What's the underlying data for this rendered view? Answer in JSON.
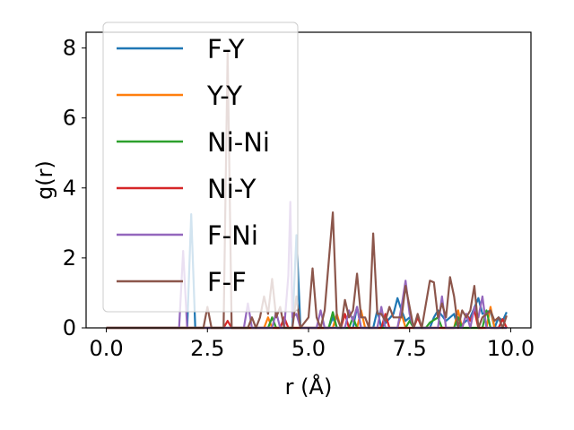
{
  "chart_data": {
    "type": "line",
    "xlabel": "r (Å)",
    "ylabel": "g(r)",
    "xlim": [
      -0.5,
      10.5
    ],
    "ylim": [
      0,
      8.45
    ],
    "xticks": [
      "0.0",
      "2.5",
      "5.0",
      "7.5",
      "10.0"
    ],
    "yticks": [
      "0",
      "2",
      "4",
      "6",
      "8"
    ],
    "legend_position": "upper left",
    "series": [
      {
        "name": "F-Y",
        "color": "#1f77b4",
        "points": [
          [
            0,
            0
          ],
          [
            2.0,
            0
          ],
          [
            2.1,
            3.25
          ],
          [
            2.2,
            0
          ],
          [
            4.6,
            0
          ],
          [
            4.7,
            2.65
          ],
          [
            4.8,
            0
          ],
          [
            5.5,
            0
          ],
          [
            5.6,
            0.3
          ],
          [
            5.7,
            0
          ],
          [
            6.1,
            0
          ],
          [
            6.2,
            0.6
          ],
          [
            6.3,
            0
          ],
          [
            6.6,
            0
          ],
          [
            6.7,
            0.5
          ],
          [
            6.8,
            0
          ],
          [
            7.1,
            0.4
          ],
          [
            7.2,
            0.85
          ],
          [
            7.3,
            0.5
          ],
          [
            7.4,
            0.2
          ],
          [
            7.5,
            0.3
          ],
          [
            7.6,
            0
          ],
          [
            8.0,
            0
          ],
          [
            8.1,
            0.3
          ],
          [
            8.2,
            0.5
          ],
          [
            8.4,
            0.2
          ],
          [
            8.6,
            0.4
          ],
          [
            8.7,
            0
          ],
          [
            9.0,
            0.3
          ],
          [
            9.2,
            0.85
          ],
          [
            9.3,
            0.4
          ],
          [
            9.5,
            0.5
          ],
          [
            9.6,
            0
          ],
          [
            9.7,
            0.3
          ],
          [
            9.8,
            0.2
          ],
          [
            9.9,
            0.45
          ]
        ]
      },
      {
        "name": "Y-Y",
        "color": "#ff7f0e",
        "points": [
          [
            0,
            0
          ],
          [
            3.9,
            0
          ],
          [
            4.0,
            0.3
          ],
          [
            4.1,
            0
          ],
          [
            5.6,
            0
          ],
          [
            5.7,
            0.4
          ],
          [
            5.8,
            0
          ],
          [
            6.2,
            0
          ],
          [
            6.3,
            0.5
          ],
          [
            6.4,
            0
          ],
          [
            7.2,
            0
          ],
          [
            7.3,
            0.4
          ],
          [
            7.4,
            0
          ],
          [
            8.6,
            0
          ],
          [
            8.7,
            0.5
          ],
          [
            8.8,
            0
          ],
          [
            9.4,
            0
          ],
          [
            9.5,
            0.6
          ],
          [
            9.6,
            0
          ],
          [
            9.9,
            0
          ]
        ]
      },
      {
        "name": "Ni-Ni",
        "color": "#2ca02c",
        "points": [
          [
            0,
            0
          ],
          [
            4.0,
            0
          ],
          [
            4.1,
            0.3
          ],
          [
            4.2,
            0
          ],
          [
            5.5,
            0
          ],
          [
            5.6,
            0.45
          ],
          [
            5.7,
            0
          ],
          [
            6.0,
            0
          ],
          [
            6.1,
            0.3
          ],
          [
            6.2,
            0
          ],
          [
            7.4,
            0
          ],
          [
            7.5,
            0.2
          ],
          [
            7.6,
            0
          ],
          [
            7.9,
            0
          ],
          [
            8.0,
            0.15
          ],
          [
            8.2,
            0.3
          ],
          [
            8.3,
            0
          ],
          [
            8.6,
            0
          ],
          [
            8.7,
            0.3
          ],
          [
            8.8,
            0
          ],
          [
            9.3,
            0
          ],
          [
            9.4,
            0.5
          ],
          [
            9.5,
            0
          ],
          [
            9.9,
            0
          ]
        ]
      },
      {
        "name": "Ni-Y",
        "color": "#d62728",
        "points": [
          [
            0,
            0
          ],
          [
            2.9,
            0
          ],
          [
            3.0,
            0.2
          ],
          [
            3.1,
            0
          ],
          [
            4.3,
            0
          ],
          [
            4.4,
            0.3
          ],
          [
            4.5,
            0
          ],
          [
            5.8,
            0
          ],
          [
            5.9,
            0.4
          ],
          [
            6.0,
            0
          ],
          [
            6.8,
            0
          ],
          [
            6.9,
            0.4
          ],
          [
            7.0,
            0
          ],
          [
            7.6,
            0
          ],
          [
            7.7,
            0.3
          ],
          [
            7.8,
            0
          ],
          [
            8.8,
            0
          ],
          [
            8.9,
            0.4
          ],
          [
            9.0,
            0.2
          ],
          [
            9.1,
            0.5
          ],
          [
            9.2,
            0
          ],
          [
            9.7,
            0
          ],
          [
            9.8,
            0.25
          ],
          [
            9.9,
            0
          ]
        ]
      },
      {
        "name": "F-Ni",
        "color": "#9467bd",
        "points": [
          [
            0,
            0
          ],
          [
            1.8,
            0
          ],
          [
            1.9,
            2.2
          ],
          [
            2.0,
            0
          ],
          [
            3.4,
            0
          ],
          [
            3.5,
            0.7
          ],
          [
            3.6,
            0
          ],
          [
            4.1,
            0
          ],
          [
            4.2,
            0.45
          ],
          [
            4.3,
            0
          ],
          [
            4.4,
            0
          ],
          [
            4.5,
            1.5
          ],
          [
            4.55,
            3.6
          ],
          [
            4.6,
            0.3
          ],
          [
            4.7,
            0.4
          ],
          [
            4.8,
            0
          ],
          [
            5.2,
            0
          ],
          [
            5.3,
            0.5
          ],
          [
            5.4,
            0
          ],
          [
            5.9,
            0
          ],
          [
            6.0,
            0.5
          ],
          [
            6.1,
            0.2
          ],
          [
            6.2,
            0.6
          ],
          [
            6.3,
            0
          ],
          [
            6.7,
            0
          ],
          [
            6.8,
            0.6
          ],
          [
            6.9,
            0
          ],
          [
            7.2,
            0
          ],
          [
            7.3,
            0.6
          ],
          [
            7.4,
            1.35
          ],
          [
            7.5,
            0.4
          ],
          [
            7.6,
            0
          ],
          [
            8.2,
            0
          ],
          [
            8.3,
            0.9
          ],
          [
            8.4,
            0
          ],
          [
            8.8,
            0
          ],
          [
            8.9,
            0.4
          ],
          [
            9.0,
            0
          ],
          [
            9.1,
            0.6
          ],
          [
            9.2,
            0.3
          ],
          [
            9.3,
            0.9
          ],
          [
            9.4,
            0
          ],
          [
            9.9,
            0
          ]
        ]
      },
      {
        "name": "F-F",
        "color": "#8c564b",
        "points": [
          [
            0,
            0
          ],
          [
            2.4,
            0
          ],
          [
            2.5,
            0.6
          ],
          [
            2.6,
            0
          ],
          [
            2.9,
            0
          ],
          [
            3.0,
            7.9
          ],
          [
            3.1,
            0
          ],
          [
            3.5,
            0
          ],
          [
            3.6,
            0.3
          ],
          [
            3.7,
            0
          ],
          [
            3.8,
            0.3
          ],
          [
            3.9,
            0.9
          ],
          [
            4.0,
            0.4
          ],
          [
            4.1,
            1.4
          ],
          [
            4.2,
            0.3
          ],
          [
            4.3,
            0.6
          ],
          [
            4.4,
            0
          ],
          [
            4.6,
            0
          ],
          [
            4.7,
            0.9
          ],
          [
            4.8,
            0
          ],
          [
            5.0,
            0.3
          ],
          [
            5.1,
            1.7
          ],
          [
            5.2,
            0.3
          ],
          [
            5.3,
            0
          ],
          [
            5.4,
            0.5
          ],
          [
            5.6,
            3.3
          ],
          [
            5.7,
            0.3
          ],
          [
            5.8,
            0
          ],
          [
            5.9,
            0.8
          ],
          [
            6.0,
            0.3
          ],
          [
            6.1,
            0.5
          ],
          [
            6.2,
            1.55
          ],
          [
            6.3,
            0.3
          ],
          [
            6.4,
            0.3
          ],
          [
            6.5,
            0
          ],
          [
            6.6,
            2.7
          ],
          [
            6.7,
            0.4
          ],
          [
            6.8,
            0.4
          ],
          [
            6.9,
            0.2
          ],
          [
            7.0,
            0.6
          ],
          [
            7.1,
            0.3
          ],
          [
            7.3,
            0.3
          ],
          [
            7.4,
            1.2
          ],
          [
            7.5,
            0.6
          ],
          [
            7.6,
            0
          ],
          [
            7.7,
            0.4
          ],
          [
            7.8,
            0
          ],
          [
            8.0,
            1.35
          ],
          [
            8.1,
            1.3
          ],
          [
            8.2,
            0.3
          ],
          [
            8.3,
            0.7
          ],
          [
            8.4,
            0.3
          ],
          [
            8.5,
            1.45
          ],
          [
            8.6,
            0.9
          ],
          [
            8.7,
            0
          ],
          [
            8.8,
            0.5
          ],
          [
            8.9,
            0.3
          ],
          [
            9.0,
            0.5
          ],
          [
            9.1,
            1.2
          ],
          [
            9.2,
            0
          ],
          [
            9.3,
            0.3
          ],
          [
            9.4,
            0.4
          ],
          [
            9.5,
            0.5
          ],
          [
            9.6,
            0.2
          ],
          [
            9.7,
            0.3
          ],
          [
            9.8,
            0
          ],
          [
            9.9,
            0.35
          ]
        ]
      }
    ]
  }
}
